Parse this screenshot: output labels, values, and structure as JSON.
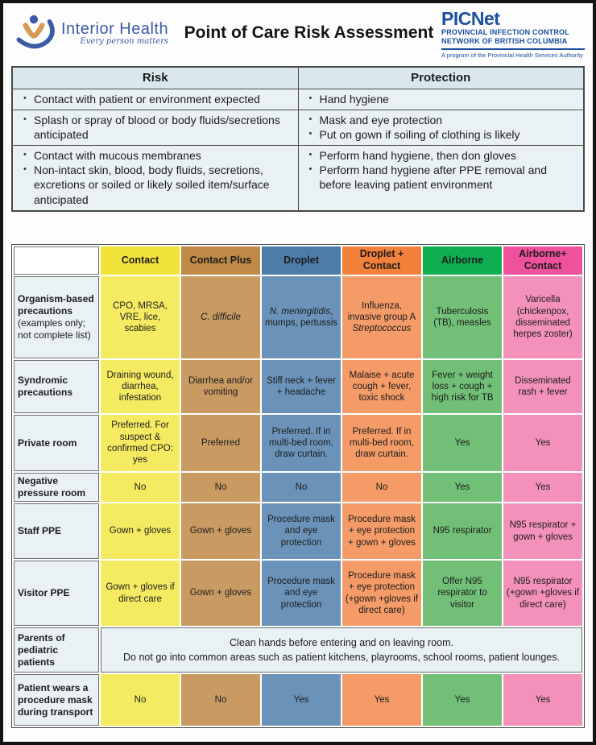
{
  "palette": {
    "page_border": "#141414",
    "text_dark": "#1c1c1c",
    "ih_blue": "#3b5ba5",
    "ih_orange": "#d69a55",
    "picnet_blue": "#1b4fa0",
    "light_blue_bg": "#e9f1f5",
    "light_blue_header_bg": "#dbe7ee"
  },
  "header": {
    "title": "Point of Care Risk Assessment",
    "interior_health": {
      "name": "Interior Health",
      "tagline": "Every person matters"
    },
    "picnet": {
      "name": "PICNet",
      "line1": "PROVINCIAL INFECTION CONTROL",
      "line2": "NETWORK OF BRITISH COLUMBIA",
      "line3": "A program of the Provincial Health Services Authority"
    }
  },
  "risk_table": {
    "headers": [
      "Risk",
      "Protection"
    ],
    "rows": [
      {
        "risk": [
          "Contact with patient or environment expected"
        ],
        "protection": [
          "Hand hygiene"
        ]
      },
      {
        "risk": [
          "Splash or spray of blood or body fluids/secretions anticipated"
        ],
        "protection": [
          "Mask and eye protection",
          "Put on gown if soiling of clothing is likely"
        ]
      },
      {
        "risk": [
          "Contact with mucous membranes",
          "Non-intact skin, blood, body fluids, secretions, excretions or soiled or likely soiled item/surface anticipated"
        ],
        "protection": [
          "Perform hand hygiene, then don gloves",
          "Perform hand hygiene after PPE removal and before leaving patient environment"
        ]
      }
    ]
  },
  "precautions_table": {
    "columns": [
      {
        "label": "Contact",
        "header_color": "#f2e33b",
        "cell_color": "#f5eb63"
      },
      {
        "label": "Contact Plus",
        "header_color": "#be8a45",
        "cell_color": "#c99b63"
      },
      {
        "label": "Droplet",
        "header_color": "#4e7ca9",
        "cell_color": "#6b93b9"
      },
      {
        "label": "Droplet + Contact",
        "header_color": "#f4813b",
        "cell_color": "#f59b68"
      },
      {
        "label": "Airborne",
        "header_color": "#0faf51",
        "cell_color": "#72c077"
      },
      {
        "label": "Airborne+ Contact",
        "header_color": "#ef519c",
        "cell_color": "#f491bb"
      }
    ],
    "rows": [
      {
        "label": "Organism-based precautions",
        "label_note": "(examples only; not complete list)",
        "cells": [
          "CPO, MRSA, VRE, lice, scabies",
          "*C. difficile*",
          "*N. meningitidis*, mumps, pertussis",
          "Influenza, invasive group A *Streptococcus*",
          "Tuberculosis (TB), measles",
          "Varicella (chickenpox, disseminated herpes zoster)"
        ]
      },
      {
        "label": "Syndromic precautions",
        "cells": [
          "Draining wound, diarrhea, infestation",
          "Diarrhea and/or vomiting",
          "Stiff neck + fever + headache",
          "Malaise + acute cough + fever, toxic shock",
          "Fever + weight loss + cough + high risk for TB",
          "Disseminated rash + fever"
        ]
      },
      {
        "label": "Private room",
        "cells": [
          "Preferred. For suspect & confirmed CPO: yes",
          "Preferred",
          "Preferred. If in multi-bed room, draw curtain.",
          "Preferred. If in multi-bed room, draw curtain.",
          "Yes",
          "Yes"
        ]
      },
      {
        "label": "Negative pressure room",
        "cells": [
          "No",
          "No",
          "No",
          "No",
          "Yes",
          "Yes"
        ]
      },
      {
        "label": "Staff PPE",
        "cells": [
          "Gown + gloves",
          "Gown + gloves",
          "Procedure mask and eye protection",
          "Procedure mask + eye protection + gown + gloves",
          "N95 respirator",
          "N95 respirator + gown + gloves"
        ]
      },
      {
        "label": "Visitor PPE",
        "cells": [
          "Gown + gloves if direct care",
          "Gown + gloves",
          "Procedure mask and eye protection",
          "Procedure mask + eye protection (+gown +gloves if direct care)",
          "Offer N95 respirator to visitor",
          "N95 respirator (+gown +gloves if direct care)"
        ]
      },
      {
        "label": "Parents of pediatric patients",
        "span_lines": [
          "Clean hands before entering and on leaving room.",
          "Do not go into common areas such as patient kitchens, playrooms, school rooms, patient lounges."
        ]
      },
      {
        "label": "Patient wears a procedure mask during transport",
        "cells": [
          "No",
          "No",
          "Yes",
          "Yes",
          "Yes",
          "Yes"
        ]
      }
    ]
  }
}
